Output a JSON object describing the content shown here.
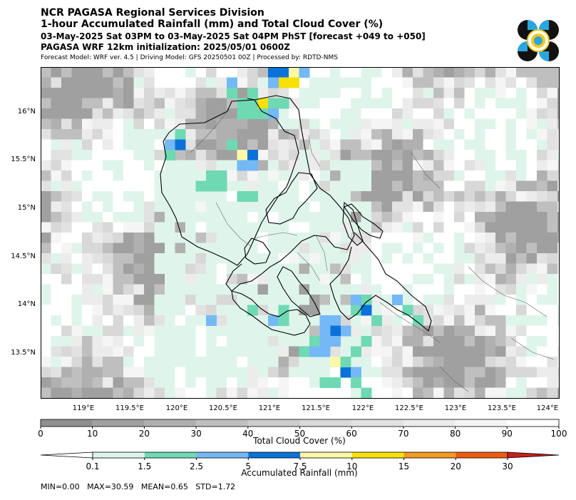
{
  "header": {
    "title": "NCR PAGASA Regional Services Division",
    "product": "1-hour Accumulated Rainfall (mm) and Total Cloud Cover (%)",
    "valid_period": "03-May-2025 Sat 03PM to 03-May-2025 Sat 04PM PhST [forecast +049 to +050]",
    "init": "PAGASA WRF 12km initialization: 2025/05/01 0600Z",
    "model_info": "Forecast Model: WRF ver. 4.5 | Driving Model: GFS 20250501 00Z | Processed by: RDTD-NMS"
  },
  "map": {
    "lat_labels": [
      "16°N",
      "15.5°N",
      "15°N",
      "14.5°N",
      "14°N",
      "13.5°N"
    ],
    "lon_labels": [
      "119°E",
      "119.5°E",
      "120°E",
      "120.5°E",
      "121°E",
      "121.5°E",
      "122°E",
      "122.5°E",
      "123°E",
      "123.5°E",
      "124°E"
    ]
  },
  "cloud_cover_bar": {
    "label": "Total Cloud Cover (%)",
    "ticks": [
      "0",
      "10",
      "20",
      "30",
      "40",
      "50",
      "60",
      "70",
      "80",
      "90",
      "100"
    ],
    "colors": [
      "#8f8f8f",
      "#a0a0a0",
      "#b0b0b0",
      "#bfbfbf",
      "#cccccc",
      "#d8d8d8",
      "#e2e2e2",
      "#ececec",
      "#f5f5f5",
      "#ffffff"
    ]
  },
  "rain_bar": {
    "label": "Accumulated Rainfall (mm)",
    "ticks": [
      "0.1",
      "1.5",
      "2.5",
      "5",
      "7.5",
      "10",
      "15",
      "20",
      "30"
    ],
    "colors": [
      "#dff5ec",
      "#6fd9b4",
      "#74b9f5",
      "#0a72d8",
      "#fbf8a8",
      "#f8e10a",
      "#f39a1f",
      "#ef5a0e",
      "#c81e1e"
    ]
  },
  "stats": {
    "text": "MIN=0.00   MAX=30.59   MEAN=0.65   STD=1.72"
  }
}
